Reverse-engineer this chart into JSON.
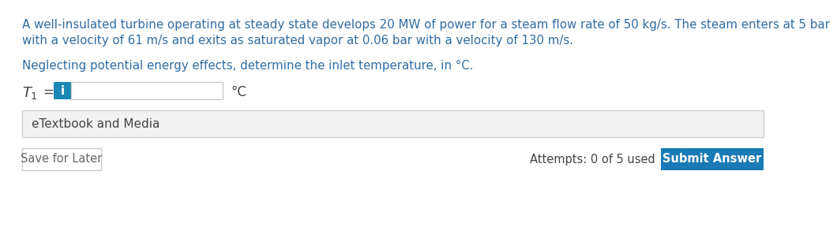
{
  "bg_color": "#ffffff",
  "paragraph1": "A well-insulated turbine operating at steady state develops 20 MW of power for a steam flow rate of 50 kg/s. The steam enters at 5 bar",
  "paragraph2": "with a velocity of 61 m/s and exits as saturated vapor at 0.06 bar with a velocity of 130 m/s.",
  "paragraph3": "Neglecting potential energy effects, determine the inlet temperature, in °C.",
  "text_color": "#2e6da4",
  "dark_text": "#444444",
  "label_T1_main": "T",
  "label_T1_sub": "1",
  "label_eq": "=",
  "label_unit": "°C",
  "info_btn_color": "#1a87b5",
  "info_btn_label": "i",
  "textbook_label": "eTextbook and Media",
  "save_btn_label": "Save for Later",
  "attempts_text": "Attempts: 0 of 5 used",
  "submit_btn_label": "Submit Answer",
  "submit_btn_color": "#1a7ab5",
  "save_btn_border": "#cccccc",
  "box_border_color": "#cccccc",
  "panel_bg": "#f2f2f2",
  "panel_border": "#d0d0d0",
  "font_size_para": 10.8,
  "font_size_label": 12,
  "font_size_btn": 10.5
}
